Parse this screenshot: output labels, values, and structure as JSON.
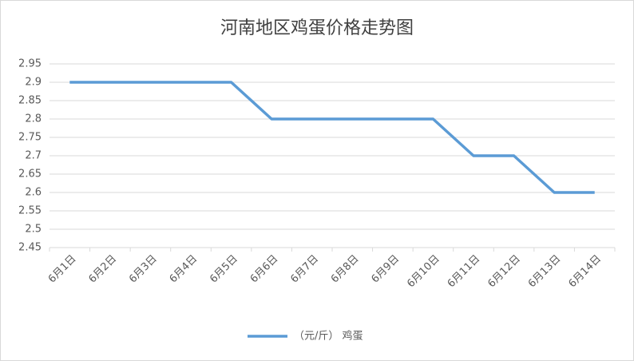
{
  "chart_data": {
    "type": "line",
    "title": "河南地区鸡蛋价格走势图",
    "categories": [
      "6月1日",
      "6月2日",
      "6月3日",
      "6月4日",
      "6月5日",
      "6月6日",
      "6月7日",
      "6月8日",
      "6月9日",
      "6月10日",
      "6月11日",
      "6月12日",
      "6月13日",
      "6月14日"
    ],
    "series": [
      {
        "name": "（元/斤） 鸡蛋",
        "color": "#5b9bd5",
        "values": [
          2.9,
          2.9,
          2.9,
          2.9,
          2.9,
          2.8,
          2.8,
          2.8,
          2.8,
          2.8,
          2.7,
          2.7,
          2.6,
          2.6
        ]
      }
    ],
    "ylim": [
      2.45,
      2.95
    ],
    "yticks": [
      2.45,
      2.5,
      2.55,
      2.6,
      2.65,
      2.7,
      2.75,
      2.8,
      2.85,
      2.9,
      2.95
    ],
    "grid": true,
    "legend": "bottom"
  }
}
